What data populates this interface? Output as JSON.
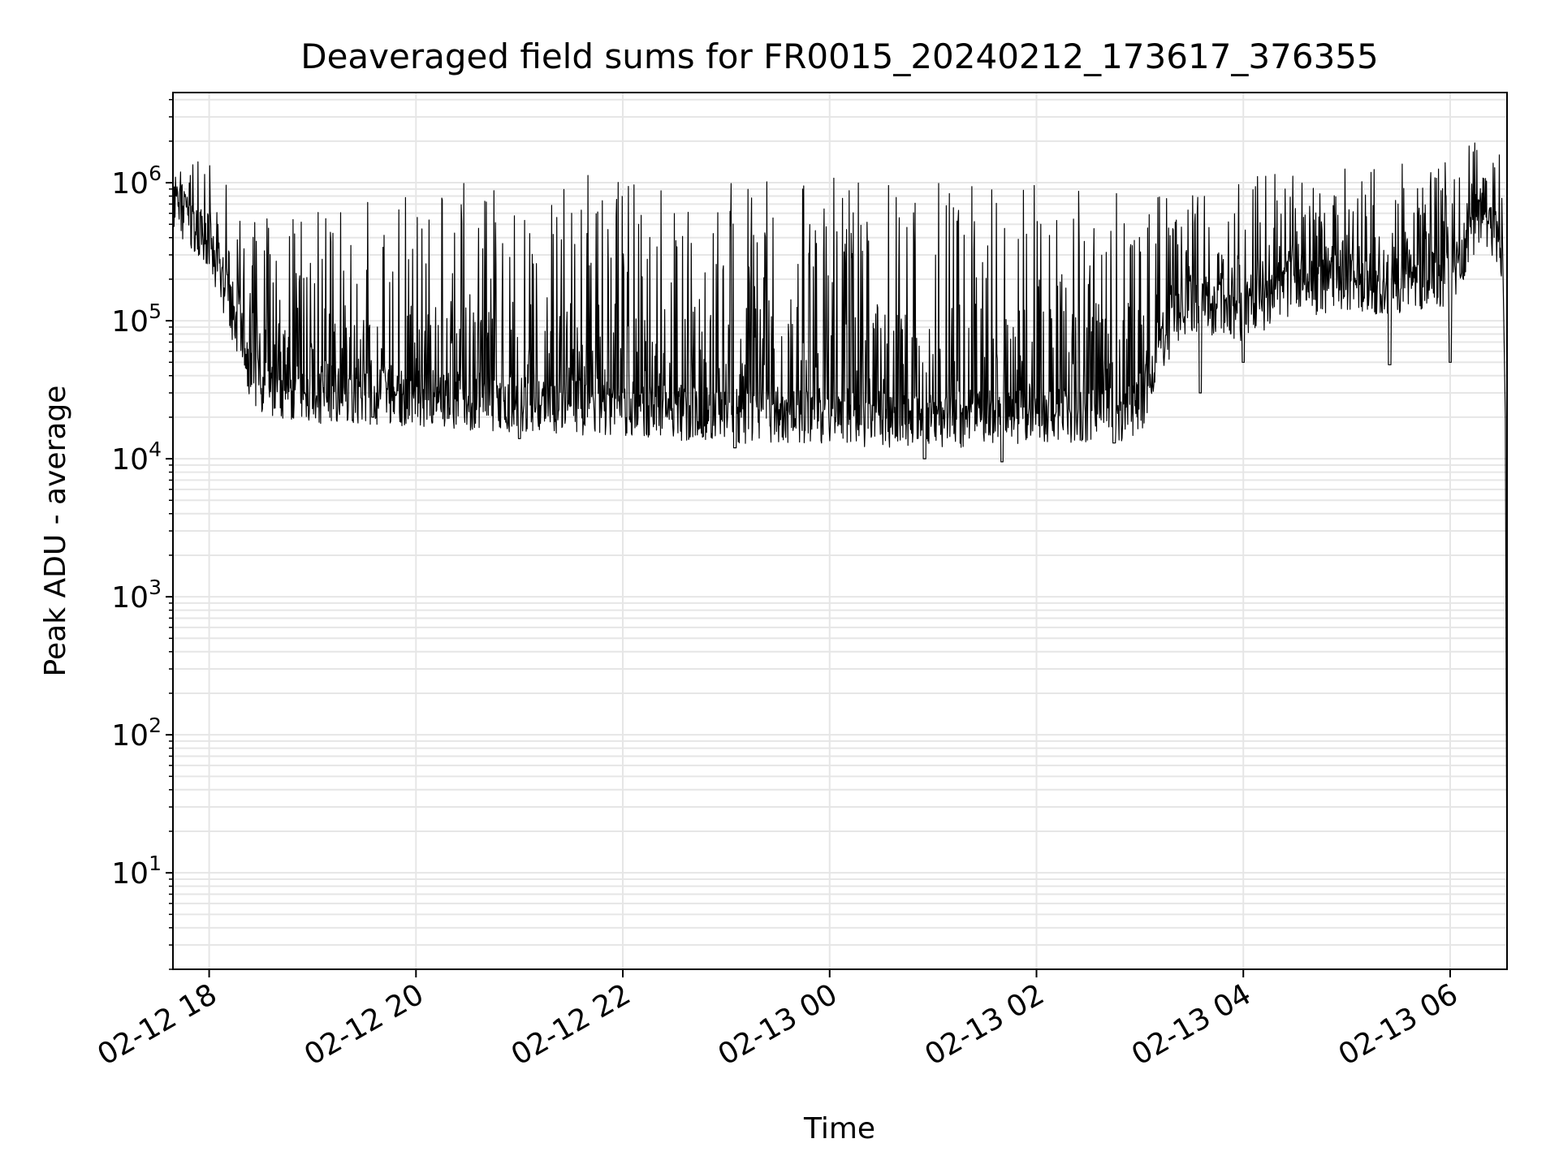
{
  "chart_data": {
    "type": "line",
    "title": "Deaveraged field sums for FR0015_20240212_173617_376355",
    "xlabel": "Time",
    "ylabel": "Peak ADU - average",
    "yscale": "log",
    "ylim": [
      2,
      4500000
    ],
    "xlim": [
      "2024-02-12 17:39",
      "2024-02-13 06:33"
    ],
    "grid": true,
    "grid_minor": true,
    "line_color": "#000000",
    "grid_color": "#e6e6e6",
    "x_ticks": [
      {
        "value": "2024-02-12 18:00",
        "label": "02-12 18"
      },
      {
        "value": "2024-02-12 20:00",
        "label": "02-12 20"
      },
      {
        "value": "2024-02-12 22:00",
        "label": "02-12 22"
      },
      {
        "value": "2024-02-13 00:00",
        "label": "02-13 00"
      },
      {
        "value": "2024-02-13 02:00",
        "label": "02-13 02"
      },
      {
        "value": "2024-02-13 04:00",
        "label": "02-13 04"
      },
      {
        "value": "2024-02-13 06:00",
        "label": "02-13 06"
      }
    ],
    "y_ticks": [
      {
        "value": 10,
        "base": "10",
        "exp": "1"
      },
      {
        "value": 100,
        "base": "10",
        "exp": "2"
      },
      {
        "value": 1000,
        "base": "10",
        "exp": "3"
      },
      {
        "value": 10000,
        "base": "10",
        "exp": "4"
      },
      {
        "value": 100000,
        "base": "10",
        "exp": "5"
      },
      {
        "value": 1000000,
        "base": "10",
        "exp": "6"
      }
    ],
    "series": [
      {
        "envelope": [
          {
            "t": "2024-02-12 17:39",
            "base": 700000,
            "peak": 1400000
          },
          {
            "t": "2024-02-12 17:48",
            "base": 500000,
            "peak": 1600000
          },
          {
            "t": "2024-02-12 18:00",
            "base": 350000,
            "peak": 1400000
          },
          {
            "t": "2024-02-12 18:10",
            "base": 150000,
            "peak": 1000000
          },
          {
            "t": "2024-02-12 18:20",
            "base": 50000,
            "peak": 900000
          },
          {
            "t": "2024-02-12 18:30",
            "base": 32000,
            "peak": 700000
          },
          {
            "t": "2024-02-12 19:00",
            "base": 28000,
            "peak": 600000
          },
          {
            "t": "2024-02-12 20:00",
            "base": 26000,
            "peak": 900000
          },
          {
            "t": "2024-02-12 21:00",
            "base": 24000,
            "peak": 1200000
          },
          {
            "t": "2024-02-12 22:00",
            "base": 22000,
            "peak": 1100000
          },
          {
            "t": "2024-02-12 23:00",
            "base": 20000,
            "peak": 1000000
          },
          {
            "t": "2024-02-13 00:00",
            "base": 19000,
            "peak": 1100000
          },
          {
            "t": "2024-02-13 01:00",
            "base": 18500,
            "peak": 1000000
          },
          {
            "t": "2024-02-13 02:00",
            "base": 19000,
            "peak": 1000000
          },
          {
            "t": "2024-02-13 03:00",
            "base": 21000,
            "peak": 900000
          },
          {
            "t": "2024-02-13 03:10",
            "base": 60000,
            "peak": 900000
          },
          {
            "t": "2024-02-13 03:30",
            "base": 130000,
            "peak": 1000000
          },
          {
            "t": "2024-02-13 04:00",
            "base": 110000,
            "peak": 1100000
          },
          {
            "t": "2024-02-13 04:30",
            "base": 170000,
            "peak": 1200000
          },
          {
            "t": "2024-02-13 05:00",
            "base": 170000,
            "peak": 1300000
          },
          {
            "t": "2024-02-13 05:30",
            "base": 170000,
            "peak": 1400000
          },
          {
            "t": "2024-02-13 06:00",
            "base": 200000,
            "peak": 1500000
          },
          {
            "t": "2024-02-13 06:20",
            "base": 600000,
            "peak": 2300000
          },
          {
            "t": "2024-02-13 06:30",
            "base": 250000,
            "peak": 1500000
          },
          {
            "t": "2024-02-13 06:33",
            "base": 4,
            "peak": 4
          }
        ],
        "dips": [
          {
            "t": "2024-02-12 19:35",
            "value": 20000
          },
          {
            "t": "2024-02-12 21:00",
            "value": 14000
          },
          {
            "t": "2024-02-12 23:05",
            "value": 12000
          },
          {
            "t": "2024-02-13 00:55",
            "value": 10000
          },
          {
            "t": "2024-02-13 01:40",
            "value": 9500
          },
          {
            "t": "2024-02-13 02:45",
            "value": 13000
          },
          {
            "t": "2024-02-13 03:35",
            "value": 30000
          },
          {
            "t": "2024-02-13 04:00",
            "value": 50000
          },
          {
            "t": "2024-02-13 05:25",
            "value": 48000
          },
          {
            "t": "2024-02-13 06:00",
            "value": 50000
          }
        ]
      }
    ]
  }
}
